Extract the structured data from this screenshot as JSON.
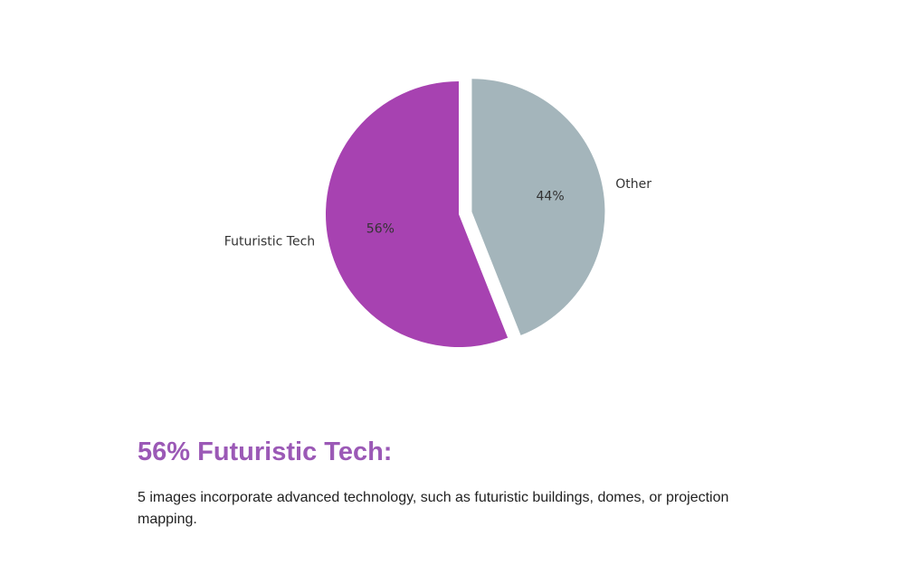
{
  "chart_data": {
    "type": "pie",
    "categories": [
      "Futuristic Tech",
      "Other"
    ],
    "values": [
      56,
      44
    ],
    "value_labels": [
      "56%",
      "44%"
    ],
    "colors": [
      "#a742b1",
      "#a4b5bb"
    ],
    "explode": [
      0,
      0.1
    ],
    "start_angle": 90
  },
  "summary": {
    "heading": "56% Futuristic Tech:",
    "text": "5 images incorporate advanced technology, such as futuristic buildings, domes, or projection mapping."
  }
}
